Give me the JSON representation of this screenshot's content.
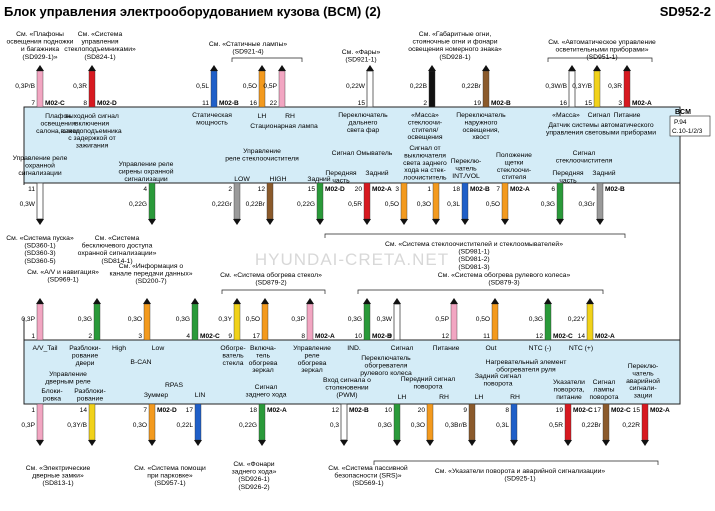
{
  "header": {
    "title": "Блок управления электрооборудованием кузова (BCM) (2)",
    "code": "SD952-2"
  },
  "bcm": {
    "name": "BCM",
    "pins": "P.94",
    "ref": "C.10-1/2/3"
  },
  "watermark": "HYUNDAI-CRETA.NET",
  "refs": [
    {
      "id": "r1",
      "text": "См. «Плафоны|освещения подножки|и багажника|(SD929-1)»"
    },
    {
      "id": "r2",
      "text": "См. «Система|управления|стеклоподъемниками»|(SD824-1)"
    },
    {
      "id": "r3",
      "text": "См. «Статичные лампы»|(SD921-4)"
    },
    {
      "id": "r4",
      "text": "См. «Фары»|(SD921-1)"
    },
    {
      "id": "r5",
      "text": "См. «Габаритные огни,|стояночные огни и фонари|освещения номерного знака»|(SD928-1)"
    },
    {
      "id": "r6",
      "text": "См. «Автоматическое управление|осветительными приборами»|(SD951-1)"
    },
    {
      "id": "r7",
      "text": "См. «Система пуска»|(SD360-1)|(SD360-3)|(SD360-5)"
    },
    {
      "id": "r8",
      "text": "См. «Система|бесключевого доступа|охранной сигнализации»|(SD814-1)"
    },
    {
      "id": "r9",
      "text": "См. «Система стеклоочистителей и стеклоомывателей»|(SD981-1)|(SD981-2)|(SD981-3)"
    },
    {
      "id": "r10",
      "text": "См. «A/V и навигация»|(SD969-1)"
    },
    {
      "id": "r11",
      "text": "См. «Информация о|канале передачи данных»|(SD200-7)"
    },
    {
      "id": "r12",
      "text": "См. «Система обогрева стекол»|(SD879-2)"
    },
    {
      "id": "r13",
      "text": "См. «Система обогрева рулевого колеса»|(SD879-3)"
    },
    {
      "id": "r14",
      "text": "См. «Электрические|дверные замки»|(SD813-1)"
    },
    {
      "id": "r15",
      "text": "См. «Система помощи|при парковке»|(SD957-1)"
    },
    {
      "id": "r16",
      "text": "См. «Фонари|заднего хода»|(SD926-1)|(SD926-2)"
    },
    {
      "id": "r17",
      "text": "См. «Система пассивной|безопасности (SRS)»|(SD569-1)"
    },
    {
      "id": "r18",
      "text": "См. «Указатели поворота и аварийной сигнализации»|(SD925-1)"
    }
  ],
  "wires": [
    {
      "id": "w1",
      "row": 1,
      "pin": "7",
      "conn": "M02-C",
      "wire": "0,3P/B",
      "color": "#f2a6c2"
    },
    {
      "id": "w2",
      "row": 1,
      "pin": "8",
      "conn": "M02-D",
      "wire": "0,3R",
      "color": "#d71920"
    },
    {
      "id": "w3",
      "row": 1,
      "pin": "11",
      "conn": "M02-B",
      "wire": "0,5L",
      "color": "#1f5fc8"
    },
    {
      "id": "w4",
      "row": 1,
      "pin": "16",
      "conn": "",
      "wire": "0,5O",
      "color": "#f39a1e"
    },
    {
      "id": "w5",
      "row": 1,
      "pin": "22",
      "conn": "",
      "wire": "0,5P",
      "color": "#f2a6c2"
    },
    {
      "id": "w6",
      "row": 1,
      "pin": "15",
      "conn": "",
      "wire": "0,22W",
      "color": "#ffffff"
    },
    {
      "id": "w7",
      "row": 1,
      "pin": "2",
      "conn": "",
      "wire": "0,22B",
      "color": "#111111"
    },
    {
      "id": "w8",
      "row": 1,
      "pin": "19",
      "conn": "M02-B",
      "wire": "0,22Br",
      "color": "#8b5a2b"
    },
    {
      "id": "w9",
      "row": 1,
      "pin": "16",
      "conn": "",
      "wire": "0,3W/B",
      "color": "#ffffff"
    },
    {
      "id": "w10",
      "row": 1,
      "pin": "15",
      "conn": "",
      "wire": "0,3Y/B",
      "color": "#f1d21a"
    },
    {
      "id": "w11",
      "row": 1,
      "pin": "3",
      "conn": "M02-A",
      "wire": "0,3R",
      "color": "#d71920"
    },
    {
      "id": "w12",
      "row": 2,
      "pin": "11",
      "conn": "",
      "wire": "0,3W",
      "color": "#ffffff"
    },
    {
      "id": "w13",
      "row": 2,
      "pin": "4",
      "conn": "",
      "wire": "0,22G",
      "color": "#2a9a3a"
    },
    {
      "id": "w14",
      "row": 2,
      "pin": "2",
      "conn": "",
      "wire": "0,22Gr",
      "color": "#9a9a9a"
    },
    {
      "id": "w15",
      "row": 2,
      "pin": "12",
      "conn": "",
      "wire": "0,22Br",
      "color": "#8b5a2b"
    },
    {
      "id": "w16",
      "row": 2,
      "pin": "15",
      "conn": "M02-D",
      "wire": "0,22G",
      "color": "#2a9a3a"
    },
    {
      "id": "w17",
      "row": 2,
      "pin": "20",
      "conn": "M02-A",
      "wire": "0,5R",
      "color": "#d71920"
    },
    {
      "id": "w18",
      "row": 2,
      "pin": "3",
      "conn": "",
      "wire": "0,5O",
      "color": "#f39a1e"
    },
    {
      "id": "w19",
      "row": 2,
      "pin": "1",
      "conn": "",
      "wire": "0,3O",
      "color": "#f39a1e"
    },
    {
      "id": "w20",
      "row": 2,
      "pin": "18",
      "conn": "M02-B",
      "wire": "0,3L",
      "color": "#1f5fc8"
    },
    {
      "id": "w21",
      "row": 2,
      "pin": "7",
      "conn": "M02-A",
      "wire": "0,5O",
      "color": "#f39a1e"
    },
    {
      "id": "w22",
      "row": 2,
      "pin": "6",
      "conn": "",
      "wire": "0,3G",
      "color": "#2a9a3a"
    },
    {
      "id": "w23",
      "row": 2,
      "pin": "4",
      "conn": "M02-B",
      "wire": "0,3Gr",
      "color": "#9a9a9a"
    },
    {
      "id": "w24",
      "row": 3,
      "pin": "1",
      "conn": "",
      "wire": "0,3P",
      "color": "#f2a6c2"
    },
    {
      "id": "w25",
      "row": 3,
      "pin": "2",
      "conn": "",
      "wire": "0,3G",
      "color": "#2a9a3a"
    },
    {
      "id": "w26",
      "row": 3,
      "pin": "3",
      "conn": "",
      "wire": "0,3O",
      "color": "#f39a1e"
    },
    {
      "id": "w27",
      "row": 3,
      "pin": "4",
      "conn": "M02-C",
      "wire": "0,3G",
      "color": "#2a9a3a"
    },
    {
      "id": "w28",
      "row": 3,
      "pin": "9",
      "conn": "",
      "wire": "0,3Y",
      "color": "#f1d21a"
    },
    {
      "id": "w29",
      "row": 3,
      "pin": "17",
      "conn": "",
      "wire": "0,5O",
      "color": "#f39a1e"
    },
    {
      "id": "w30",
      "row": 3,
      "pin": "8",
      "conn": "M02-A",
      "wire": "0,3P",
      "color": "#f2a6c2"
    },
    {
      "id": "w31",
      "row": 3,
      "pin": "10",
      "conn": "M02-B",
      "wire": "0,3G",
      "color": "#2a9a3a"
    },
    {
      "id": "w32",
      "row": 3,
      "pin": "9",
      "conn": "",
      "wire": "0,3W",
      "color": "#ffffff"
    },
    {
      "id": "w33",
      "row": 3,
      "pin": "12",
      "conn": "",
      "wire": "0,5P",
      "color": "#f2a6c2"
    },
    {
      "id": "w34",
      "row": 3,
      "pin": "11",
      "conn": "",
      "wire": "0,5O",
      "color": "#f39a1e"
    },
    {
      "id": "w35",
      "row": 3,
      "pin": "12",
      "conn": "M02-C",
      "wire": "0,3G",
      "color": "#2a9a3a"
    },
    {
      "id": "w36",
      "row": 3,
      "pin": "14",
      "conn": "M02-A",
      "wire": "0,22Y",
      "color": "#f1d21a"
    },
    {
      "id": "w37",
      "row": 4,
      "pin": "1",
      "conn": "",
      "wire": "0,3P",
      "color": "#f2a6c2"
    },
    {
      "id": "w38",
      "row": 4,
      "pin": "14",
      "conn": "",
      "wire": "0,3Y/B",
      "color": "#f1d21a"
    },
    {
      "id": "w39",
      "row": 4,
      "pin": "7",
      "conn": "M02-D",
      "wire": "0,3O",
      "color": "#f39a1e"
    },
    {
      "id": "w40",
      "row": 4,
      "pin": "17",
      "conn": "",
      "wire": "0,22L",
      "color": "#1f5fc8"
    },
    {
      "id": "w41",
      "row": 4,
      "pin": "18",
      "conn": "M02-A",
      "wire": "0,22G",
      "color": "#2a9a3a"
    },
    {
      "id": "w42",
      "row": 4,
      "pin": "12",
      "conn": "M02-B",
      "wire": "0,3",
      "color": "#ffffff"
    },
    {
      "id": "w43",
      "row": 4,
      "pin": "10",
      "conn": "",
      "wire": "0,3G",
      "color": "#2a9a3a"
    },
    {
      "id": "w44",
      "row": 4,
      "pin": "20",
      "conn": "",
      "wire": "0,3O",
      "color": "#f39a1e"
    },
    {
      "id": "w45",
      "row": 4,
      "pin": "9",
      "conn": "",
      "wire": "0,3Br/B",
      "color": "#8b5a2b"
    },
    {
      "id": "w46",
      "row": 4,
      "pin": "8",
      "conn": "",
      "wire": "0,3L",
      "color": "#1f5fc8"
    },
    {
      "id": "w47",
      "row": 4,
      "pin": "19",
      "conn": "M02-C",
      "wire": "0,5R",
      "color": "#d71920"
    },
    {
      "id": "w48",
      "row": 4,
      "pin": "17",
      "conn": "M02-C",
      "wire": "0,22Br",
      "color": "#8b5a2b"
    },
    {
      "id": "w49",
      "row": 4,
      "pin": "15",
      "conn": "M02-A",
      "wire": "0,22R",
      "color": "#d71920"
    }
  ],
  "labels": [
    {
      "id": "l1",
      "text": "Плафон|освещения|салона,выход"
    },
    {
      "id": "l2",
      "text": "выходной сигнал|включения|стеклоподъемника|с задержкой от|зажигания"
    },
    {
      "id": "l3",
      "text": "Статическая|мощность"
    },
    {
      "id": "l4",
      "text": "LH"
    },
    {
      "id": "l5",
      "text": "RH"
    },
    {
      "id": "l6",
      "text": "Стационарная лампа"
    },
    {
      "id": "l7",
      "text": "Переключатель|дальнего|света фар"
    },
    {
      "id": "l8",
      "text": "«Масса»|стеклоочи-|стителя/|освещения"
    },
    {
      "id": "l9",
      "text": "Переключатель|наружного|освещения,|хвост"
    },
    {
      "id": "l10",
      "text": "«Масса»"
    },
    {
      "id": "l11",
      "text": "Сигнал"
    },
    {
      "id": "l12",
      "text": "Питание"
    },
    {
      "id": "l13",
      "text": "Датчик системы автоматического|управления световыми приборами"
    },
    {
      "id": "l14",
      "text": "Управление реле|охранной|сигнализации"
    },
    {
      "id": "l15",
      "text": "Управление реле|сирены охранной|сигнализации"
    },
    {
      "id": "l16",
      "text": "Управление|реле стеклоочистителя"
    },
    {
      "id": "l17",
      "text": "LOW"
    },
    {
      "id": "l18",
      "text": "HIGH"
    },
    {
      "id": "l19",
      "text": "Задний"
    },
    {
      "id": "l20",
      "text": "Сигнал Омыватель"
    },
    {
      "id": "l21",
      "text": "Передняя|часть"
    },
    {
      "id": "l22",
      "text": "Задний"
    },
    {
      "id": "l23",
      "text": "Сигнал от|выключателя|света заднего|хода на стек-|лоочиститель"
    },
    {
      "id": "l24",
      "text": "Переклю-|чатель|INT./VOL"
    },
    {
      "id": "l25",
      "text": "Положение|щетки|стеклоочи-|стителя"
    },
    {
      "id": "l26",
      "text": "Сигнал|стеклоочистителя"
    },
    {
      "id": "l27",
      "text": "Передняя|часть"
    },
    {
      "id": "l28",
      "text": "Задний"
    },
    {
      "id": "l29",
      "text": "A/V_Tail"
    },
    {
      "id": "l30",
      "text": "Разблоки-|рование|двери"
    },
    {
      "id": "l31",
      "text": "High"
    },
    {
      "id": "l32",
      "text": "Low"
    },
    {
      "id": "l33",
      "text": "B-CAN"
    },
    {
      "id": "l34",
      "text": "Обогре-|ватель|стекла"
    },
    {
      "id": "l35",
      "text": "Включа-|тель|обогрева|зеркал"
    },
    {
      "id": "l36",
      "text": "Управление|реле|обогрева|зеркал"
    },
    {
      "id": "l37",
      "text": "IND."
    },
    {
      "id": "l38",
      "text": "Сигнал"
    },
    {
      "id": "l39",
      "text": "Переключатель|обогревателя|рулевого колеса"
    },
    {
      "id": "l40",
      "text": "Питание"
    },
    {
      "id": "l41",
      "text": "Out"
    },
    {
      "id": "l42",
      "text": "NTC (-)"
    },
    {
      "id": "l43",
      "text": "NTC (+)"
    },
    {
      "id": "l44",
      "text": "Нагревательный элемент|обогревателя руля"
    },
    {
      "id": "l45",
      "text": "Управление|дверным реле"
    },
    {
      "id": "l46",
      "text": "Блоки-|ровка"
    },
    {
      "id": "l47",
      "text": "Разблоки-|рование"
    },
    {
      "id": "l48",
      "text": "RPAS"
    },
    {
      "id": "l49",
      "text": "Зуммер"
    },
    {
      "id": "l50",
      "text": "LIN"
    },
    {
      "id": "l51",
      "text": "Сигнал|заднего хода"
    },
    {
      "id": "l52",
      "text": "Вход сигнала о|столкновении|(PWM)"
    },
    {
      "id": "l53",
      "text": "Передний сигнал|поворота"
    },
    {
      "id": "l54",
      "text": "LH"
    },
    {
      "id": "l55",
      "text": "RH"
    },
    {
      "id": "l56",
      "text": "Задний сигнал|поворота"
    },
    {
      "id": "l57",
      "text": "LH"
    },
    {
      "id": "l58",
      "text": "RH"
    },
    {
      "id": "l59",
      "text": "Указатели|поворота,|питание"
    },
    {
      "id": "l60",
      "text": "Сигнал|лампы|поворота"
    },
    {
      "id": "l61",
      "text": "Переклю-|чатель|аварийной|сигнали-|зации"
    }
  ]
}
